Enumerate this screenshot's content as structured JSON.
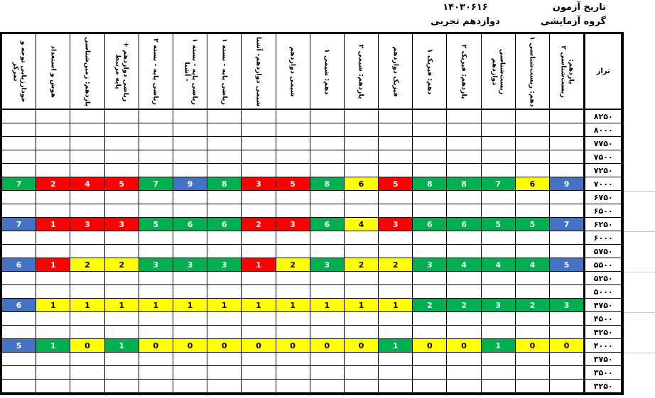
{
  "header": {
    "exam_date_label": "تاریخ آزمون",
    "exam_date_value": "۱۴۰۳۰۶۱۶",
    "exam_group_label": "گروه آزمایشی",
    "exam_group_value": "دوازدهم تجربی"
  },
  "colors": {
    "g": "#00B050",
    "r": "#FF0000",
    "y": "#FFFF00",
    "b": "#4472C4",
    "border": "#000000",
    "faint_gridline": "#c9c9c9"
  },
  "table": {
    "taraz_header": "تراز",
    "columns": [
      "خودارزیابی توجه و تمرکز",
      "هوش و استعداد",
      "یازدهم: زمین‌شناسی",
      "ریاضی دوازدهم + پایه مرتبط",
      "ریاضی پایه - بسته ۲",
      "ریاضی پایه - بسته ۱ - آشنا",
      "ریاضی پایه - بسته ۱",
      "شیمی دوازدهم- آشنا",
      "شیمی دوازدهم",
      "دهم: شیمی ۱",
      "یازدهم: شیمی ۲",
      "فیزیک دوازدهم",
      "دهم: فیزیک ۱",
      "یازدهم: فیزیک ۲",
      "زیست‌شناسی دوازدهم",
      "دهم: زیست‌شناسی ۱",
      "یازدهم: زیست‌شناسی ۲"
    ],
    "rows": [
      {
        "taraz": "۸۲۵۰",
        "cells": null
      },
      {
        "taraz": "۸۰۰۰",
        "cells": null
      },
      {
        "taraz": "۷۷۵۰",
        "cells": null
      },
      {
        "taraz": "۷۵۰۰",
        "cells": null
      },
      {
        "taraz": "۷۲۵۰",
        "cells": null
      },
      {
        "taraz": "۷۰۰۰",
        "cells": [
          {
            "v": 7,
            "c": "g"
          },
          {
            "v": 2,
            "c": "r"
          },
          {
            "v": 4,
            "c": "r"
          },
          {
            "v": 5,
            "c": "r"
          },
          {
            "v": 7,
            "c": "g"
          },
          {
            "v": 9,
            "c": "b"
          },
          {
            "v": 8,
            "c": "g"
          },
          {
            "v": 3,
            "c": "r"
          },
          {
            "v": 5,
            "c": "r"
          },
          {
            "v": 8,
            "c": "g"
          },
          {
            "v": 6,
            "c": "y"
          },
          {
            "v": 5,
            "c": "r"
          },
          {
            "v": 8,
            "c": "g"
          },
          {
            "v": 8,
            "c": "g"
          },
          {
            "v": 7,
            "c": "g"
          },
          {
            "v": 6,
            "c": "y"
          },
          {
            "v": 9,
            "c": "b"
          }
        ]
      },
      {
        "taraz": "۶۷۵۰",
        "cells": null
      },
      {
        "taraz": "۶۵۰۰",
        "cells": null
      },
      {
        "taraz": "۶۲۵۰",
        "cells": [
          {
            "v": 7,
            "c": "b"
          },
          {
            "v": 1,
            "c": "r"
          },
          {
            "v": 3,
            "c": "r"
          },
          {
            "v": 3,
            "c": "r"
          },
          {
            "v": 5,
            "c": "g"
          },
          {
            "v": 6,
            "c": "g"
          },
          {
            "v": 6,
            "c": "g"
          },
          {
            "v": 2,
            "c": "r"
          },
          {
            "v": 3,
            "c": "r"
          },
          {
            "v": 6,
            "c": "g"
          },
          {
            "v": 4,
            "c": "y"
          },
          {
            "v": 3,
            "c": "r"
          },
          {
            "v": 6,
            "c": "g"
          },
          {
            "v": 6,
            "c": "g"
          },
          {
            "v": 5,
            "c": "g"
          },
          {
            "v": 5,
            "c": "g"
          },
          {
            "v": 7,
            "c": "b"
          }
        ]
      },
      {
        "taraz": "۶۰۰۰",
        "cells": null
      },
      {
        "taraz": "۵۷۵۰",
        "cells": null
      },
      {
        "taraz": "۵۵۰۰",
        "cells": [
          {
            "v": 6,
            "c": "b"
          },
          {
            "v": 1,
            "c": "r"
          },
          {
            "v": 2,
            "c": "y"
          },
          {
            "v": 2,
            "c": "y"
          },
          {
            "v": 3,
            "c": "g"
          },
          {
            "v": 3,
            "c": "g"
          },
          {
            "v": 3,
            "c": "g"
          },
          {
            "v": 1,
            "c": "r"
          },
          {
            "v": 2,
            "c": "y"
          },
          {
            "v": 3,
            "c": "g"
          },
          {
            "v": 2,
            "c": "y"
          },
          {
            "v": 2,
            "c": "y"
          },
          {
            "v": 3,
            "c": "g"
          },
          {
            "v": 4,
            "c": "g"
          },
          {
            "v": 4,
            "c": "g"
          },
          {
            "v": 4,
            "c": "g"
          },
          {
            "v": 5,
            "c": "b"
          }
        ]
      },
      {
        "taraz": "۵۲۵۰",
        "cells": null
      },
      {
        "taraz": "۵۰۰۰",
        "cells": null
      },
      {
        "taraz": "۴۷۵۰",
        "cells": [
          {
            "v": 6,
            "c": "b"
          },
          {
            "v": 1,
            "c": "y"
          },
          {
            "v": 1,
            "c": "y"
          },
          {
            "v": 1,
            "c": "y"
          },
          {
            "v": 1,
            "c": "y"
          },
          {
            "v": 1,
            "c": "y"
          },
          {
            "v": 1,
            "c": "y"
          },
          {
            "v": 1,
            "c": "y"
          },
          {
            "v": 1,
            "c": "y"
          },
          {
            "v": 1,
            "c": "y"
          },
          {
            "v": 1,
            "c": "y"
          },
          {
            "v": 1,
            "c": "y"
          },
          {
            "v": 2,
            "c": "g"
          },
          {
            "v": 2,
            "c": "g"
          },
          {
            "v": 3,
            "c": "g"
          },
          {
            "v": 2,
            "c": "g"
          },
          {
            "v": 3,
            "c": "g"
          }
        ]
      },
      {
        "taraz": "۴۵۰۰",
        "cells": null
      },
      {
        "taraz": "۴۲۵۰",
        "cells": null
      },
      {
        "taraz": "۴۰۰۰",
        "cells": [
          {
            "v": 5,
            "c": "b"
          },
          {
            "v": 1,
            "c": "g"
          },
          {
            "v": 0,
            "c": "y"
          },
          {
            "v": 1,
            "c": "g"
          },
          {
            "v": 0,
            "c": "y"
          },
          {
            "v": 0,
            "c": "y"
          },
          {
            "v": 0,
            "c": "y"
          },
          {
            "v": 0,
            "c": "y"
          },
          {
            "v": 0,
            "c": "y"
          },
          {
            "v": 0,
            "c": "y"
          },
          {
            "v": 0,
            "c": "y"
          },
          {
            "v": 1,
            "c": "g"
          },
          {
            "v": 0,
            "c": "y"
          },
          {
            "v": 0,
            "c": "y"
          },
          {
            "v": 1,
            "c": "g"
          },
          {
            "v": 0,
            "c": "y"
          },
          {
            "v": 0,
            "c": "y"
          }
        ]
      },
      {
        "taraz": "۳۷۵۰",
        "cells": null
      },
      {
        "taraz": "۳۵۰۰",
        "cells": null
      },
      {
        "taraz": "۳۲۵۰",
        "cells": null
      }
    ]
  }
}
